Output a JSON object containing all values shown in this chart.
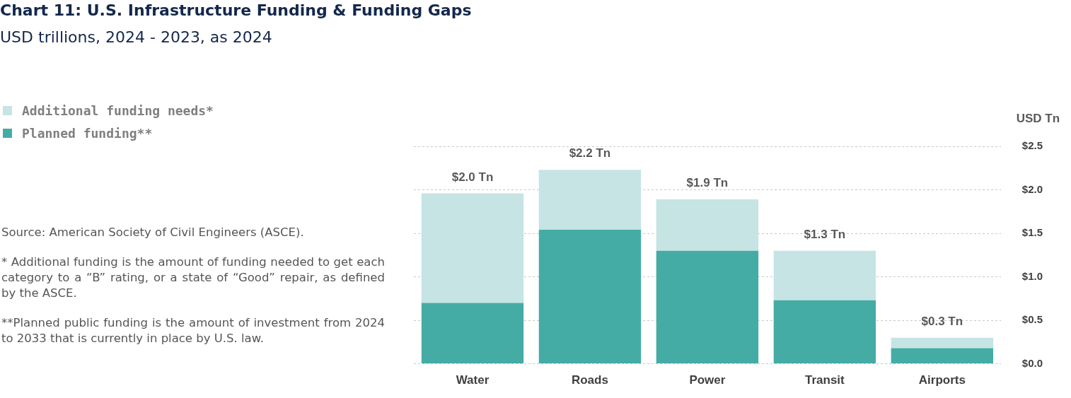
{
  "chart_data": {
    "type": "bar",
    "title": "Chart 11: U.S. Infrastructure Funding & Funding Gaps",
    "subtitle": "USD trillions, 2024 - 2023, as 2024",
    "ylabel": "USD Tn",
    "categories": [
      "Water",
      "Roads",
      "Power",
      "Transit",
      "Airports"
    ],
    "series": [
      {
        "name": "Planned funding**",
        "color": "#44aca5",
        "values": [
          0.7,
          1.54,
          1.3,
          0.73,
          0.18
        ]
      },
      {
        "name": "Additional funding needs*",
        "color": "#c5e4e3",
        "values": [
          1.26,
          0.69,
          0.59,
          0.57,
          0.12
        ]
      }
    ],
    "stacked": true,
    "totals": [
      "$2.0 Tn",
      "$2.2 Tn",
      "$1.9 Tn",
      "$1.3 Tn",
      "$0.3 Tn"
    ],
    "ylim": [
      0,
      2.5
    ],
    "yticks": [
      {
        "value": 0,
        "label": "$0.0"
      },
      {
        "value": 0.5,
        "label": "$0.5"
      },
      {
        "value": 1,
        "label": "$1.0"
      },
      {
        "value": 1.5,
        "label": "$1.5"
      },
      {
        "value": 2,
        "label": "$2.0"
      },
      {
        "value": 2.5,
        "label": "$2.5"
      }
    ],
    "grid": "y",
    "legend": "top left",
    "annotations": [
      "Source: American Society of Civil Engineers (ASCE).",
      "* Additional funding is the amount of funding needed to get each category to a “B” rating, or a state of “Good” repair, as defined by the ASCE.",
      "**Planned public funding is the amount of investment from 2024 to 2033 that is currently in place by U.S. law."
    ]
  }
}
